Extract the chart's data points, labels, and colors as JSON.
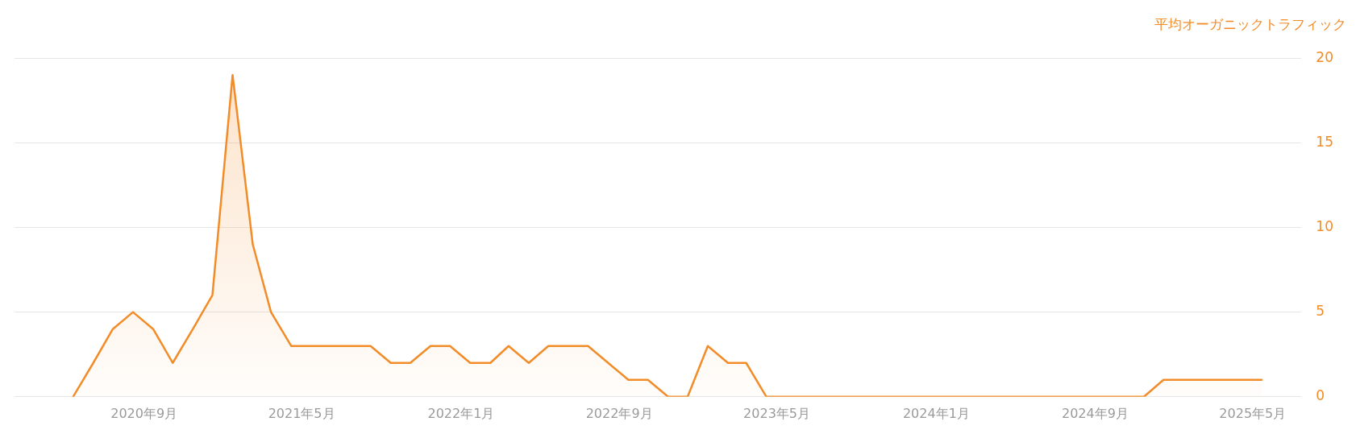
{
  "chart_data": {
    "type": "area",
    "ylabel": "平均オーガニックトラフィック",
    "x": [
      "2020-05-15",
      "2020-06-15",
      "2020-07-15",
      "2020-08-15",
      "2020-09-15",
      "2020-10-15",
      "2020-11-15",
      "2020-12-15",
      "2021-01-15",
      "2021-02-15",
      "2021-03-15",
      "2021-04-15",
      "2021-05-15",
      "2021-06-15",
      "2021-07-15",
      "2021-08-15",
      "2021-09-15",
      "2021-10-15",
      "2021-11-15",
      "2021-12-15",
      "2022-01-15",
      "2022-02-15",
      "2022-03-15",
      "2022-04-15",
      "2022-05-15",
      "2022-06-15",
      "2022-07-15",
      "2022-08-15",
      "2022-09-15",
      "2022-10-15",
      "2022-11-15",
      "2022-12-15",
      "2023-01-15",
      "2023-02-15",
      "2023-03-15",
      "2023-04-15",
      "2023-05-15",
      "2023-06-15",
      "2023-07-15",
      "2023-08-15",
      "2023-09-15",
      "2023-10-15",
      "2023-11-15",
      "2023-12-15",
      "2024-01-15",
      "2024-02-15",
      "2024-03-15",
      "2024-04-15",
      "2024-05-15",
      "2024-06-15",
      "2024-07-15",
      "2024-08-15",
      "2024-09-15",
      "2024-10-15",
      "2024-11-15",
      "2024-12-15",
      "2025-01-15",
      "2025-02-15",
      "2025-03-15",
      "2025-04-15",
      "2025-05-15"
    ],
    "series": [
      {
        "color": "#f28c28",
        "values": [
          0,
          2,
          4,
          5,
          4,
          2,
          4,
          6,
          19,
          9,
          5,
          3,
          3,
          3,
          3,
          3,
          2,
          2,
          3,
          3,
          2,
          2,
          3,
          2,
          3,
          3,
          3,
          2,
          1,
          1,
          0,
          0,
          3,
          2,
          2,
          0,
          0,
          0,
          0,
          0,
          0,
          0,
          0,
          0,
          0,
          0,
          0,
          0,
          0,
          0,
          0,
          0,
          0,
          0,
          0,
          1,
          1,
          1,
          1,
          1,
          1
        ]
      }
    ],
    "xlim": [
      "2020-02-15",
      "2025-07-15"
    ],
    "xticks": [
      {
        "value": "2020-09-01",
        "label": "2020年9月"
      },
      {
        "value": "2021-05-01",
        "label": "2021年5月"
      },
      {
        "value": "2022-01-01",
        "label": "2022年1月"
      },
      {
        "value": "2022-09-01",
        "label": "2022年9月"
      },
      {
        "value": "2023-05-01",
        "label": "2023年5月"
      },
      {
        "value": "2024-01-01",
        "label": "2024年1月"
      },
      {
        "value": "2024-09-01",
        "label": "2024年9月"
      },
      {
        "value": "2025-05-01",
        "label": "2025年5月"
      }
    ],
    "ylim": [
      0,
      20
    ],
    "yticks": [
      0,
      5,
      10,
      15,
      20
    ],
    "grid": "y",
    "legend": false,
    "marker": "none",
    "line_style": "solid"
  }
}
